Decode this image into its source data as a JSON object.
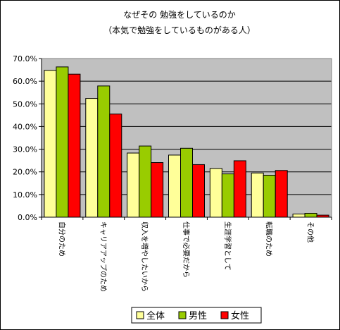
{
  "chart_data": {
    "type": "bar",
    "title": "なぜその 勉強をしているのか",
    "subtitle": "（本気で勉強をしているものがある人）",
    "categories": [
      "自分のため",
      "キャリアアップのため",
      "収入を増やしたいから",
      "仕事で必要だから",
      "生涯学習として",
      "転職のため",
      "その他"
    ],
    "series": [
      {
        "name": "全体",
        "color": "#ffff99",
        "values": [
          64.8,
          52.4,
          28.3,
          27.4,
          21.5,
          19.5,
          1.4
        ]
      },
      {
        "name": "男性",
        "color": "#99cc00",
        "values": [
          66.3,
          57.9,
          31.4,
          30.4,
          19.1,
          18.5,
          1.7
        ]
      },
      {
        "name": "女性",
        "color": "#ff0000",
        "values": [
          63.1,
          45.5,
          24.1,
          23.2,
          24.9,
          20.6,
          0.9
        ]
      }
    ],
    "ylim": [
      0,
      70
    ],
    "yticks": [
      "0.0%",
      "10.0%",
      "20.0%",
      "30.0%",
      "40.0%",
      "50.0%",
      "60.0%",
      "70.0%"
    ],
    "plot_background": "#c0c0c0",
    "grid": true,
    "legend": "bottom"
  }
}
